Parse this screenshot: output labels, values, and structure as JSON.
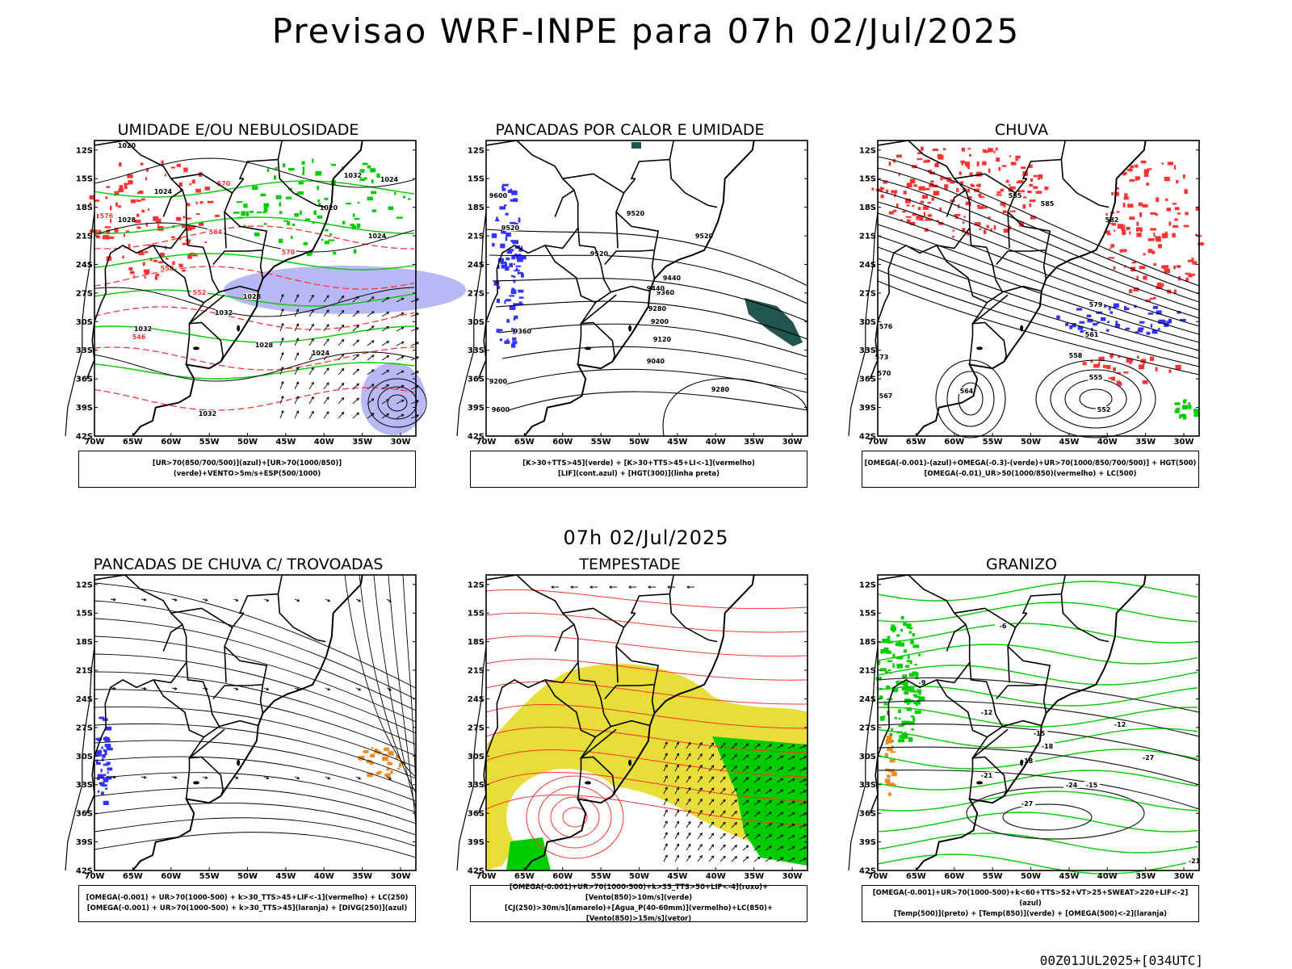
{
  "title": "Previsao WRF-INPE  para 07h 02/Jul/2025",
  "mid_title": "07h 02/Jul/2025",
  "footer": "00Z01JUL2025+[034UTC]",
  "axes": {
    "lat_labels": [
      "12S",
      "15S",
      "18S",
      "21S",
      "24S",
      "27S",
      "30S",
      "33S",
      "36S",
      "39S",
      "42S"
    ],
    "lon_labels": [
      "70W",
      "65W",
      "60W",
      "55W",
      "50W",
      "45W",
      "40W",
      "35W",
      "30W"
    ]
  },
  "colors": {
    "blue": "#3333ff",
    "light_blue": "#b0b0f4",
    "green": "#00cc00",
    "red": "#ff3333",
    "yellow": "#e8de3a",
    "orange": "#ee8a22",
    "dark_teal": "#235550"
  },
  "panels": [
    {
      "id": "umidade",
      "title": "UMIDADE E/OU NEBULOSIDADE",
      "legend": [
        "[UR>70(850/700/500)](azul)+[UR>70(1000/850)](verde)+VENTO>5m/s+ESP(500/1000)"
      ],
      "contour_labels": [
        "1020",
        "1024",
        "1028",
        "1032",
        "1020",
        "1024",
        "1024",
        "1028",
        "1032",
        "1028",
        "1032",
        "1024",
        "1032"
      ],
      "red_labels": [
        "570",
        "564",
        "558",
        "552",
        "546",
        "576",
        "570"
      ]
    },
    {
      "id": "pancadas-calor",
      "title": "PANCADAS POR CALOR E UMIDADE",
      "legend": [
        "[K>30+TTS>45](verde) + [K>30+TTS>45+LI<-1](vermelho)",
        "[LIF](cont.azul) + [HGT(300)](linha preta)"
      ],
      "contour_labels": [
        "9600",
        "9520",
        "9520",
        "9440",
        "9360",
        "9280",
        "9200",
        "9120",
        "9040",
        "9280",
        "9200",
        "9600",
        "9520",
        "9520",
        "9440",
        "9360"
      ]
    },
    {
      "id": "chuva",
      "title": "CHUVA",
      "legend": [
        "[OMEGA(-0.001)-(azul)+OMEGA(-0.3)-(verde)+UR>70(1000/850/700/500)] + HGT(500)",
        "[OMEGA(-0.01)_UR>50(1000/850)(vermelho) + LC(500)"
      ],
      "contour_labels": [
        "585",
        "585",
        "579",
        "576",
        "573",
        "570",
        "567",
        "564",
        "561",
        "558",
        "555",
        "552",
        "582"
      ]
    },
    {
      "id": "trovoadas",
      "title": "PANCADAS DE CHUVA C/ TROVOADAS",
      "legend": [
        "[OMEGA(-0.001) + UR>70(1000-500) + k>30_TTS>45+LIF<-1](vermelho) + LC(250)",
        "[OMEGA(-0.001) + UR>70(1000-500) + k>30_TTS>45](laranja) + [DIVG(250)](azul)"
      ]
    },
    {
      "id": "tempestade",
      "title": "TEMPESTADE",
      "legend": [
        "[OMEGA(-0.001)+UR>70(1000-500)+k>35_TTS>50+LIF<-4](roxo)+[Vento(850)>10m/s](verde)",
        "[CJ(250)>30m/s](amarelo)+[Agua_P(40-60mm)](vermelho)+LC(850)+[Vento(850)>15m/s](vetor)"
      ]
    },
    {
      "id": "granizo",
      "title": "GRANIZO",
      "legend": [
        "[OMEGA(-0.001)+UR>70(1000-500)+k<60+TTS>52+VT>25+SWEAT>220+LIF<-2](azul)",
        "[Temp(500)](preto) + [Temp(850)](verde) + [OMEGA(500)<-2](laranja)"
      ],
      "contour_labels": [
        "-9",
        "-12",
        "-15",
        "-18",
        "-21",
        "-24",
        "-27",
        "-12",
        "-15",
        "-21",
        "-27",
        "-18",
        "-6"
      ]
    }
  ]
}
